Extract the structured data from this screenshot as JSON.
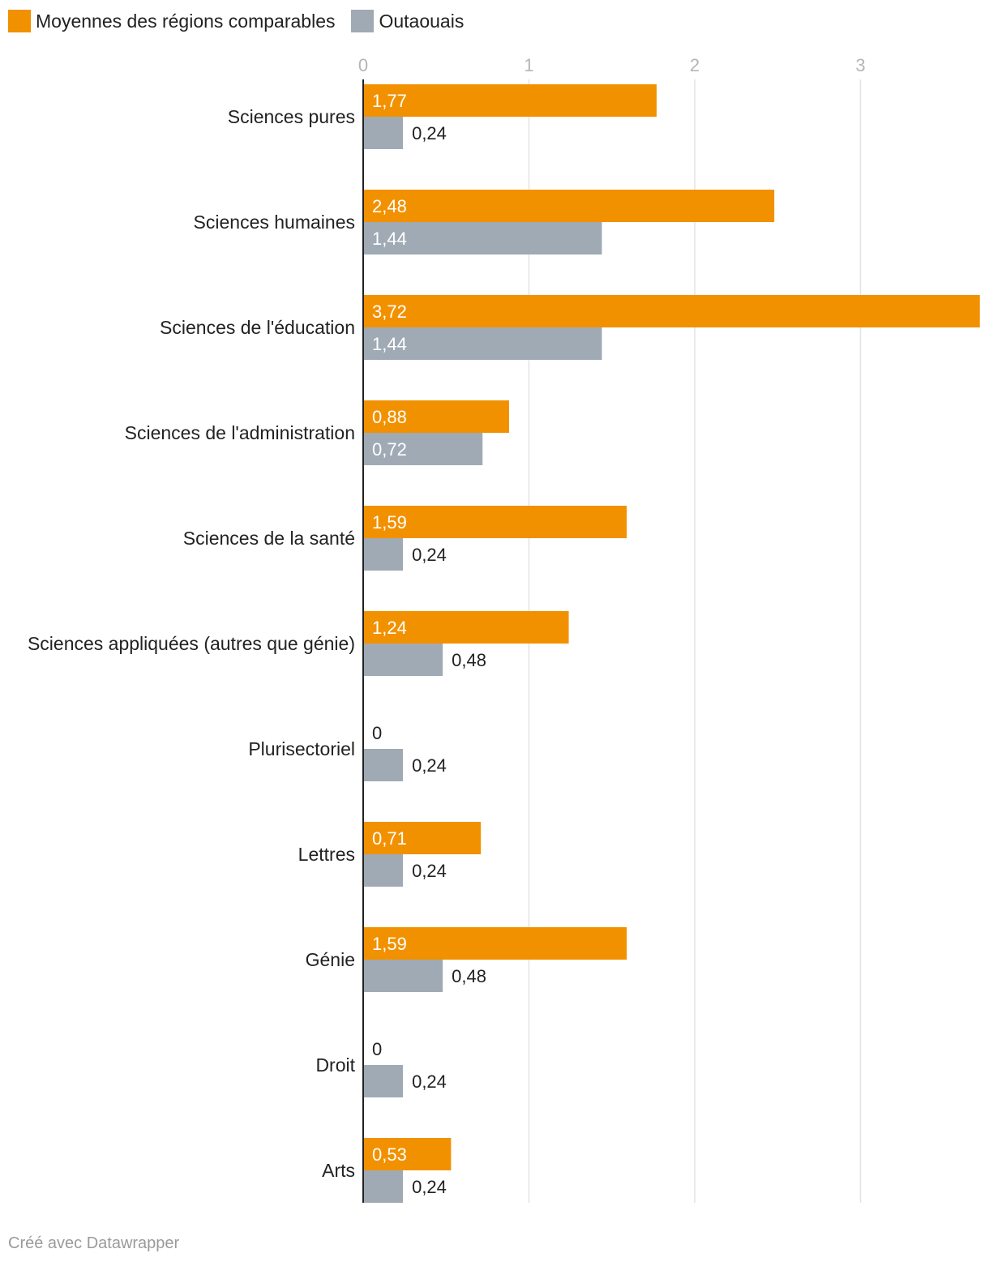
{
  "legend": [
    {
      "label": "Moyennes des régions comparables",
      "color": "#f29100"
    },
    {
      "label": "Outaouais",
      "color": "#a0aab5"
    }
  ],
  "footer": "Créé avec Datawrapper",
  "chart_data": {
    "type": "bar",
    "orientation": "horizontal",
    "categories": [
      "Sciences pures",
      "Sciences humaines",
      "Sciences de l'éducation",
      "Sciences de l'administration",
      "Sciences de la santé",
      "Sciences appliquées (autres que génie)",
      "Plurisectoriel",
      "Lettres",
      "Génie",
      "Droit",
      "Arts"
    ],
    "series": [
      {
        "name": "Moyennes des régions comparables",
        "color": "#f29100",
        "values": [
          1.77,
          2.48,
          3.72,
          0.88,
          1.59,
          1.24,
          0,
          0.71,
          1.59,
          0,
          0.53
        ],
        "labels": [
          "1,77",
          "2,48",
          "3,72",
          "0,88",
          "1,59",
          "1,24",
          "0",
          "0,71",
          "1,59",
          "0",
          "0,53"
        ]
      },
      {
        "name": "Outaouais",
        "color": "#a0aab5",
        "values": [
          0.24,
          1.44,
          1.44,
          0.72,
          0.24,
          0.48,
          0.24,
          0.24,
          0.48,
          0.24,
          0.24
        ],
        "labels": [
          "0,24",
          "1,44",
          "1,44",
          "0,72",
          "0,24",
          "0,48",
          "0,24",
          "0,24",
          "0,48",
          "0,24",
          "0,24"
        ]
      }
    ],
    "ticks": [
      0,
      1,
      2,
      3
    ],
    "tick_labels": [
      "0",
      "1",
      "2",
      "3"
    ],
    "xlim": [
      0,
      3.72
    ],
    "grid": true,
    "legend_position": "top-left"
  }
}
